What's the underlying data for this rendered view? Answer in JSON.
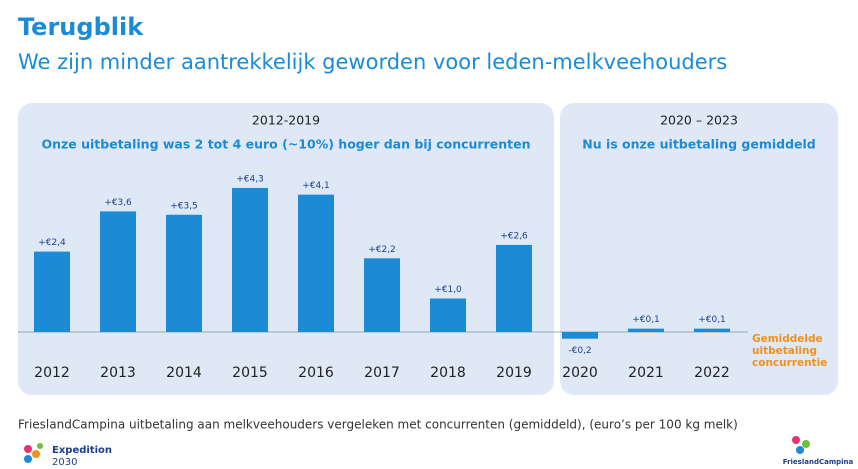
{
  "title": "Terugblik",
  "subtitle": "We zijn minder aantrekkelijk geworden voor leden-melkveehouders",
  "chart_data": {
    "type": "bar",
    "panels": [
      {
        "period": "2012-2019",
        "heading": "Onze uitbetaling was 2 tot 4 euro (~10%) hoger dan bij concurrenten"
      },
      {
        "period": "2020 – 2023",
        "heading": "Nu is onze uitbetaling gemiddeld"
      }
    ],
    "categories": [
      "2012",
      "2013",
      "2014",
      "2015",
      "2016",
      "2017",
      "2018",
      "2019",
      "2020",
      "2021",
      "2022"
    ],
    "values": [
      2.4,
      3.6,
      3.5,
      4.3,
      4.1,
      2.2,
      1.0,
      2.6,
      -0.2,
      0.1,
      0.1
    ],
    "value_labels": [
      "+€2,4",
      "+€3,6",
      "+€3,5",
      "+€4,3",
      "+€4,1",
      "+€2,2",
      "+€1,0",
      "+€2,6",
      "-€0,2",
      "+€0,1",
      "+€0,1"
    ],
    "color": "#1b8bd6",
    "baseline_label": [
      "Gemiddelde",
      "uitbetaling",
      "concurrentie"
    ],
    "note": "FrieslandCampina uitbetaling aan melkveehouders vergeleken met concurrenten (gemiddeld), (euro’s per 100 kg melk)"
  },
  "footer": {
    "program": "Expedition",
    "year": "2030",
    "brand": "FrieslandCampina"
  }
}
